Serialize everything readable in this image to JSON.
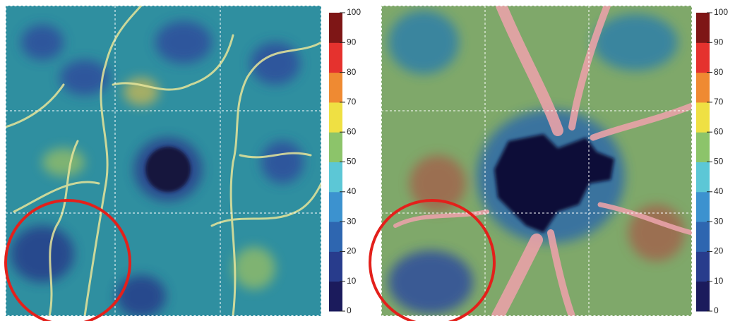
{
  "panels": [
    {
      "colorbar": {
        "ticks": [
          0,
          10,
          20,
          30,
          40,
          50,
          60,
          70,
          80,
          90,
          100
        ],
        "colors": [
          "#1b1b5c",
          "#283c8c",
          "#2e66b0",
          "#3c92cf",
          "#5cc7d6",
          "#8cc46a",
          "#efe043",
          "#ef8a32",
          "#e5322e",
          "#7e1616"
        ]
      }
    },
    {
      "colorbar": {
        "ticks": [
          0,
          10,
          20,
          30,
          40,
          50,
          60,
          70,
          80,
          90,
          100
        ],
        "colors": [
          "#1b1b5c",
          "#283c8c",
          "#2e66b0",
          "#3c92cf",
          "#5cc7d6",
          "#8cc46a",
          "#efe043",
          "#ef8a32",
          "#e5322e",
          "#7e1616"
        ]
      }
    }
  ]
}
